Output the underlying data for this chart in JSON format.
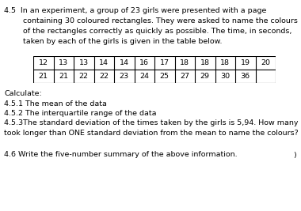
{
  "intro_lines": [
    "4.5  In an experiment, a group of 23 girls were presented with a page",
    "        containing 30 coloured rectangles. They were asked to name the colours",
    "        of the rectangles correctly as quickly as possible. The time, in seconds,",
    "        taken by each of the girls is given in the table below."
  ],
  "table_row1": [
    "12",
    "13",
    "13",
    "14",
    "14",
    "16",
    "17",
    "18",
    "18",
    "18",
    "19",
    "20"
  ],
  "table_row2": [
    "21",
    "21",
    "22",
    "22",
    "23",
    "24",
    "25",
    "27",
    "29",
    "30",
    "36",
    ""
  ],
  "calc_label": "Calculate:",
  "q1": "4.5.1 The mean of the data",
  "q2": "4.5.2 The interquartile range of the data",
  "q3a": "4.5.3The standard deviation of the times taken by the girls is 5,94. How many girls",
  "q3b": "took longer than ONE standard deviation from the mean to name the colours?",
  "footer": "4.6 Write the five-number summary of the above information.",
  "footer_paren": ")",
  "bg_color": "#ffffff",
  "text_color": "#000000",
  "font_size": 6.8,
  "table_font_size": 6.8
}
